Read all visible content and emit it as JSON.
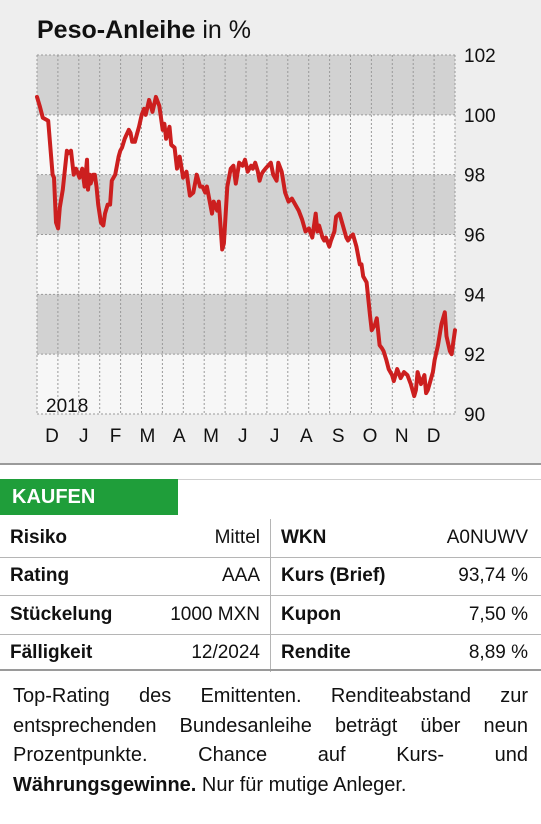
{
  "header": {
    "title_bold": "Peso-Anleihe",
    "title_unit": "in %"
  },
  "chart_data": {
    "type": "line",
    "title": "Peso-Anleihe in %",
    "year_label": "2018",
    "x_ticks": [
      "D",
      "J",
      "F",
      "M",
      "A",
      "M",
      "J",
      "J",
      "A",
      "S",
      "O",
      "N",
      "D"
    ],
    "ylim": [
      90,
      102
    ],
    "y_ticks": [
      90,
      92,
      94,
      96,
      98,
      100,
      102
    ],
    "y_ticks_labels": [
      "90",
      "92",
      "94",
      "96",
      "98",
      "100",
      "102"
    ],
    "grid": true,
    "line_color": "#cc1f1f",
    "band_color": "#d2d2d2",
    "series": [
      {
        "x": [
          0.0,
          0.08,
          0.17,
          0.33,
          0.46,
          0.5,
          0.56,
          0.62,
          0.67,
          0.76,
          0.88,
          0.9,
          1.0,
          1.08,
          1.15,
          1.25,
          1.3,
          1.33,
          1.4,
          1.47,
          1.5,
          1.55,
          1.58,
          1.65,
          1.7,
          1.75,
          1.8,
          1.88,
          1.95,
          2.0,
          2.08,
          2.15,
          2.2,
          2.3,
          2.4,
          2.45,
          2.5,
          2.58,
          2.62,
          2.7,
          2.75,
          2.8,
          2.88,
          2.95,
          3.0,
          3.08,
          3.15,
          3.2,
          3.3,
          3.4,
          3.5,
          3.6,
          3.7,
          3.75,
          3.8,
          3.85,
          3.9,
          3.95,
          4.05,
          4.12,
          4.2,
          4.3,
          4.4,
          4.5,
          4.6,
          4.7,
          4.8,
          4.87,
          4.95,
          5.0,
          5.1,
          5.15,
          5.2,
          5.3,
          5.35,
          5.45,
          5.5,
          5.6,
          5.65,
          5.7,
          5.78,
          5.85,
          5.95,
          6.05,
          6.12,
          6.2,
          6.3,
          6.35,
          6.42,
          6.5,
          6.55,
          6.6,
          6.65,
          6.72,
          6.8,
          6.88,
          6.95,
          7.05,
          7.1,
          7.2,
          7.3,
          7.4,
          7.5,
          7.6,
          7.7,
          7.8,
          7.9,
          8.0,
          8.1,
          8.2,
          8.25,
          8.3,
          8.4,
          8.45,
          8.5,
          8.6,
          8.65,
          8.75,
          8.8,
          8.9,
          9.0,
          9.1,
          9.15,
          9.2,
          9.3,
          9.4,
          9.5,
          9.55,
          9.6,
          9.7,
          9.8,
          9.85,
          9.95,
          10.0,
          10.08,
          10.15,
          10.2,
          10.28,
          10.35,
          10.45,
          10.5,
          10.6,
          10.7,
          10.8,
          10.9,
          11.0,
          11.1,
          11.15,
          11.2,
          11.3,
          11.4,
          11.45,
          11.5,
          11.6,
          11.65,
          11.7,
          11.8,
          11.9,
          12.0,
          12.05,
          12.15,
          12.2,
          12.3
        ],
        "y": [
          100.6,
          100.3,
          99.9,
          99.8,
          98.0,
          97.9,
          96.4,
          96.2,
          96.9,
          97.5,
          98.8,
          98.7,
          98.8,
          98.0,
          98.2,
          97.9,
          98.1,
          98.2,
          97.6,
          98.5,
          97.5,
          98.0,
          97.7,
          98.0,
          98.0,
          97.6,
          97.0,
          96.4,
          96.3,
          96.7,
          97.0,
          97.0,
          97.8,
          98.0,
          98.6,
          98.8,
          98.9,
          99.2,
          99.3,
          99.5,
          99.4,
          99.1,
          99.1,
          99.4,
          99.6,
          100.0,
          100.2,
          100.0,
          100.5,
          100.1,
          100.6,
          100.3,
          99.5,
          99.7,
          99.2,
          99.4,
          99.6,
          99.0,
          98.9,
          98.2,
          98.6,
          97.9,
          98.1,
          97.3,
          97.4,
          98.0,
          97.6,
          97.6,
          97.4,
          97.6,
          97.0,
          96.7,
          97.1,
          96.8,
          97.1,
          95.5,
          95.7,
          97.6,
          97.9,
          98.2,
          98.3,
          97.7,
          98.4,
          98.3,
          98.5,
          98.1,
          98.3,
          98.2,
          98.4,
          98.1,
          97.8,
          98.0,
          98.1,
          98.2,
          98.3,
          98.4,
          98.0,
          97.8,
          98.4,
          98.1,
          97.4,
          97.1,
          97.2,
          97.0,
          96.8,
          96.5,
          96.1,
          96.2,
          95.9,
          96.7,
          96.1,
          96.3,
          95.9,
          95.8,
          95.9,
          95.6,
          95.8,
          96.1,
          96.6,
          96.7,
          96.3,
          95.9,
          95.8,
          95.9,
          96.0,
          95.6,
          95.0,
          95.0,
          94.6,
          94.4,
          93.3,
          92.8,
          93.0,
          93.2,
          92.3,
          92.2,
          92.1,
          91.8,
          91.5,
          91.3,
          91.1,
          91.5,
          91.2,
          91.4,
          91.3,
          91.0,
          90.6,
          90.8,
          91.4,
          91.0,
          91.3,
          90.7,
          90.8,
          91.2,
          91.4,
          91.8,
          92.3,
          93.0,
          93.4,
          92.6,
          92.1,
          92.0,
          92.8
        ]
      }
    ]
  },
  "badge": {
    "label": "KAUFEN",
    "color": "#1f9e3a"
  },
  "facts": [
    {
      "k1": "Risiko",
      "v1": "Mittel",
      "k2": "WKN",
      "v2": "A0NUWV"
    },
    {
      "k1": "Rating",
      "v1": "AAA",
      "k2": "Kurs (Brief)",
      "v2": "93,74 %"
    },
    {
      "k1": "Stückelung",
      "v1": "1000 MXN",
      "k2": "Kupon",
      "v2": "7,50 %"
    },
    {
      "k1": "Fälligkeit",
      "v1": "12/2024",
      "k2": "Rendite",
      "v2": "8,89 %"
    }
  ],
  "description": {
    "text": "Top-Rating des Emittenten. Renditeabstand zur entsprechenden Bundesanleihe beträgt über neun Prozentpunkte. Chance auf Kurs- und",
    "bold": "Währungsgewinne.",
    "tail": "Nur für mutige Anleger."
  }
}
